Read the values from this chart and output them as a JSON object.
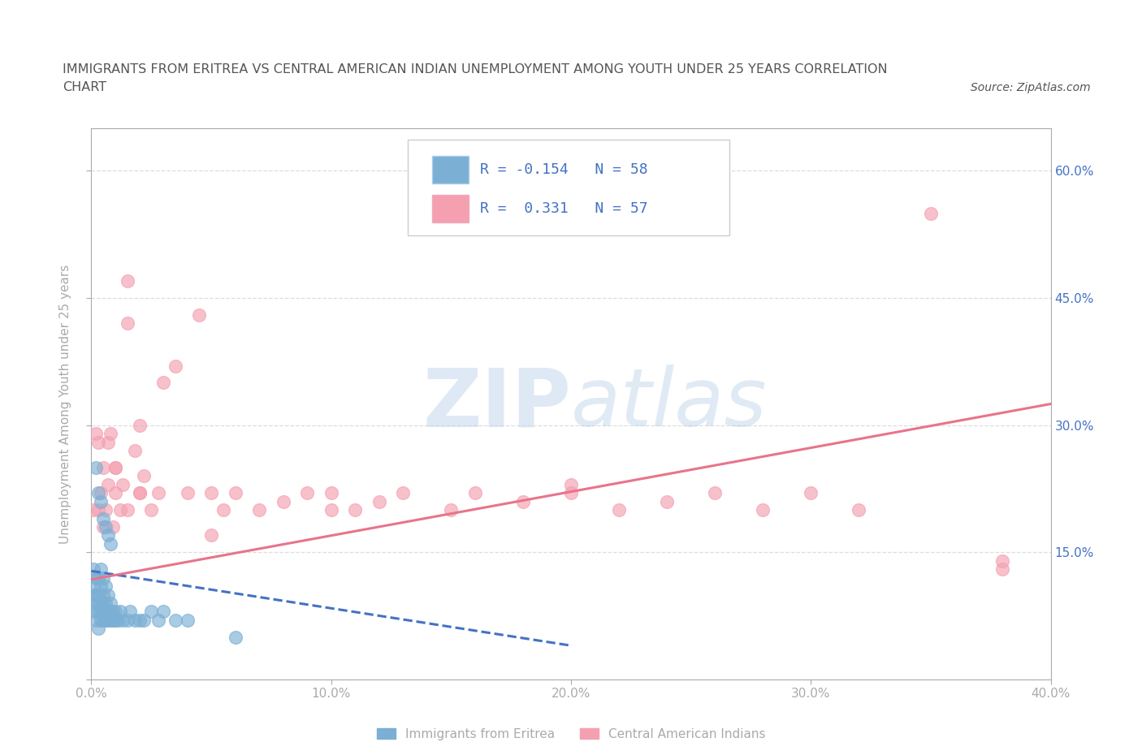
{
  "title_line1": "IMMIGRANTS FROM ERITREA VS CENTRAL AMERICAN INDIAN UNEMPLOYMENT AMONG YOUTH UNDER 25 YEARS CORRELATION",
  "title_line2": "CHART",
  "source": "Source: ZipAtlas.com",
  "ylabel": "Unemployment Among Youth under 25 years",
  "xlim": [
    0.0,
    0.4
  ],
  "ylim": [
    0.0,
    0.65
  ],
  "xticks": [
    0.0,
    0.1,
    0.2,
    0.3,
    0.4
  ],
  "xticklabels": [
    "0.0%",
    "10.0%",
    "20.0%",
    "30.0%",
    "40.0%"
  ],
  "yticks": [
    0.0,
    0.15,
    0.3,
    0.45,
    0.6
  ],
  "yticklabels_right": [
    "",
    "15.0%",
    "30.0%",
    "45.0%",
    "60.0%"
  ],
  "series1_name": "Immigrants from Eritrea",
  "series1_color": "#7BAFD4",
  "series1_R": -0.154,
  "series1_N": 58,
  "series2_name": "Central American Indians",
  "series2_color": "#F4A0B0",
  "series2_R": 0.331,
  "series2_N": 57,
  "watermark_zip": "ZIP",
  "watermark_atlas": "atlas",
  "background_color": "#ffffff",
  "grid_color": "#dddddd",
  "axis_color": "#aaaaaa",
  "legend_text_color": "#4472C4",
  "title_color": "#555555",
  "blue_trend_start_x": 0.0,
  "blue_trend_start_y": 0.128,
  "blue_trend_end_x": 0.2,
  "blue_trend_end_y": 0.04,
  "pink_trend_start_x": 0.0,
  "pink_trend_start_y": 0.118,
  "pink_trend_end_x": 0.4,
  "pink_trend_end_y": 0.325,
  "blue_x": [
    0.001,
    0.001,
    0.001,
    0.001,
    0.002,
    0.002,
    0.002,
    0.002,
    0.003,
    0.003,
    0.003,
    0.003,
    0.003,
    0.004,
    0.004,
    0.004,
    0.004,
    0.004,
    0.005,
    0.005,
    0.005,
    0.005,
    0.005,
    0.006,
    0.006,
    0.006,
    0.006,
    0.007,
    0.007,
    0.007,
    0.008,
    0.008,
    0.008,
    0.009,
    0.009,
    0.01,
    0.01,
    0.011,
    0.012,
    0.013,
    0.015,
    0.016,
    0.018,
    0.02,
    0.022,
    0.025,
    0.028,
    0.03,
    0.035,
    0.04,
    0.002,
    0.003,
    0.004,
    0.005,
    0.006,
    0.007,
    0.008,
    0.06
  ],
  "blue_y": [
    0.08,
    0.1,
    0.11,
    0.13,
    0.07,
    0.09,
    0.1,
    0.12,
    0.06,
    0.08,
    0.09,
    0.1,
    0.12,
    0.07,
    0.08,
    0.09,
    0.11,
    0.13,
    0.07,
    0.08,
    0.09,
    0.1,
    0.12,
    0.07,
    0.08,
    0.09,
    0.11,
    0.07,
    0.08,
    0.1,
    0.07,
    0.08,
    0.09,
    0.07,
    0.08,
    0.07,
    0.08,
    0.07,
    0.08,
    0.07,
    0.07,
    0.08,
    0.07,
    0.07,
    0.07,
    0.08,
    0.07,
    0.08,
    0.07,
    0.07,
    0.25,
    0.22,
    0.21,
    0.19,
    0.18,
    0.17,
    0.16,
    0.05
  ],
  "pink_x": [
    0.001,
    0.002,
    0.003,
    0.004,
    0.005,
    0.006,
    0.007,
    0.008,
    0.009,
    0.01,
    0.01,
    0.012,
    0.013,
    0.015,
    0.015,
    0.018,
    0.02,
    0.02,
    0.022,
    0.025,
    0.028,
    0.03,
    0.035,
    0.04,
    0.045,
    0.05,
    0.055,
    0.06,
    0.07,
    0.08,
    0.09,
    0.1,
    0.11,
    0.12,
    0.13,
    0.15,
    0.16,
    0.18,
    0.2,
    0.22,
    0.24,
    0.26,
    0.28,
    0.3,
    0.32,
    0.35,
    0.38,
    0.003,
    0.005,
    0.007,
    0.01,
    0.015,
    0.02,
    0.05,
    0.1,
    0.2,
    0.38
  ],
  "pink_y": [
    0.2,
    0.29,
    0.28,
    0.22,
    0.25,
    0.2,
    0.28,
    0.29,
    0.18,
    0.22,
    0.25,
    0.2,
    0.23,
    0.47,
    0.42,
    0.27,
    0.22,
    0.3,
    0.24,
    0.2,
    0.22,
    0.35,
    0.37,
    0.22,
    0.43,
    0.22,
    0.2,
    0.22,
    0.2,
    0.21,
    0.22,
    0.22,
    0.2,
    0.21,
    0.22,
    0.2,
    0.22,
    0.21,
    0.22,
    0.2,
    0.21,
    0.22,
    0.2,
    0.22,
    0.2,
    0.55,
    0.13,
    0.2,
    0.18,
    0.23,
    0.25,
    0.2,
    0.22,
    0.17,
    0.2,
    0.23,
    0.14
  ]
}
